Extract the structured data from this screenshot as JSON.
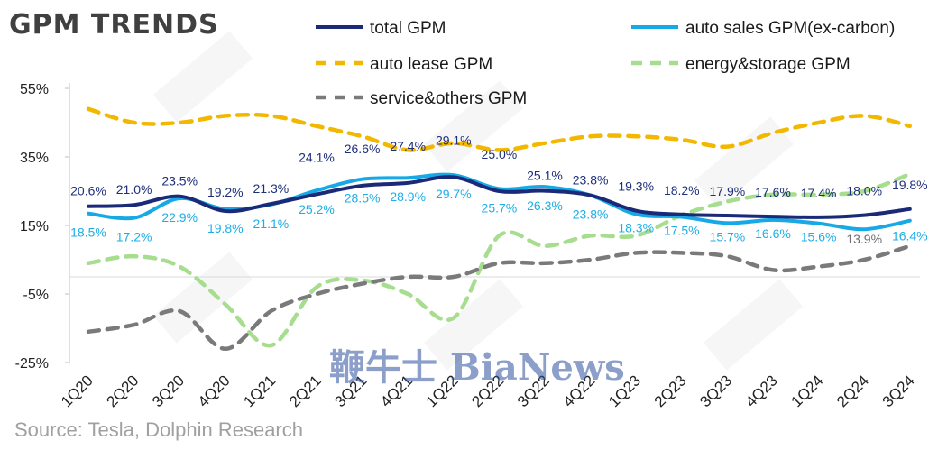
{
  "title": "GPM TRENDS",
  "source": "Source: Tesla,  Dolphin Research",
  "watermark": "鞭牛士 BiaNews",
  "chart_data": {
    "type": "line",
    "title": "GPM TRENDS",
    "categories": [
      "1Q20",
      "2Q20",
      "3Q20",
      "4Q20",
      "1Q21",
      "2Q21",
      "3Q21",
      "4Q21",
      "1Q22",
      "2Q22",
      "3Q22",
      "4Q22",
      "1Q23",
      "2Q23",
      "3Q23",
      "4Q23",
      "1Q24",
      "2Q24",
      "3Q24"
    ],
    "ylim": [
      -25,
      55
    ],
    "yticks": [
      55,
      35,
      15,
      -5,
      -25
    ],
    "ytick_labels": [
      "55%",
      "35%",
      "15%",
      "-5%",
      "-25%"
    ],
    "grid": false,
    "legend": "top",
    "series": [
      {
        "name": "total GPM",
        "color": "#1a2a78",
        "dash": "solid",
        "values": [
          20.6,
          21.0,
          23.5,
          19.2,
          21.3,
          24.1,
          26.6,
          27.4,
          29.1,
          25.0,
          25.1,
          23.8,
          19.3,
          18.2,
          17.9,
          17.6,
          17.4,
          18.0,
          19.8
        ],
        "labels": [
          "20.6%",
          "21.0%",
          "23.5%",
          "19.2%",
          "21.3%",
          "24.1%",
          "26.6%",
          "27.4%",
          "29.1%",
          "25.0%",
          "25.1%",
          "23.8%",
          "19.3%",
          "18.2%",
          "17.9%",
          "17.6%",
          "17.4%",
          "18.0%",
          "19.8%"
        ]
      },
      {
        "name": "auto sales GPM(ex-carbon)",
        "color": "#16a9e6",
        "dash": "solid",
        "values": [
          18.5,
          17.2,
          22.9,
          19.8,
          21.1,
          25.2,
          28.5,
          28.9,
          29.7,
          25.7,
          26.3,
          23.8,
          18.3,
          17.5,
          15.7,
          16.6,
          15.6,
          13.9,
          16.4
        ],
        "labels": [
          "18.5%",
          "17.2%",
          "22.9%",
          "19.8%",
          "21.1%",
          "25.2%",
          "28.5%",
          "28.9%",
          "29.7%",
          "25.7%",
          "26.3%",
          "23.8%",
          "18.3%",
          "17.5%",
          "15.7%",
          "16.6%",
          "15.6%",
          "13.9%",
          "16.4%"
        ]
      },
      {
        "name": "auto lease GPM",
        "color": "#f2b800",
        "dash": "dash",
        "values": [
          49,
          45,
          45,
          47,
          47,
          44,
          41,
          37,
          39,
          37,
          39,
          41,
          41,
          40,
          38,
          42,
          45,
          47,
          44
        ],
        "labels": []
      },
      {
        "name": "energy&storage GPM",
        "color": "#a6dd8e",
        "dash": "dash",
        "values": [
          4,
          6,
          3,
          -8,
          -20,
          -3,
          -1,
          -5,
          -12,
          12,
          9,
          12,
          12,
          18,
          22,
          24,
          24,
          25,
          30
        ],
        "labels": []
      },
      {
        "name": "service&others GPM",
        "color": "#7a7a7a",
        "dash": "dash",
        "values": [
          -16,
          -14,
          -10,
          -21,
          -10,
          -5,
          -2,
          0,
          0,
          4,
          4,
          5,
          7,
          7,
          6,
          2,
          3,
          5,
          9
        ],
        "labels": []
      }
    ]
  }
}
